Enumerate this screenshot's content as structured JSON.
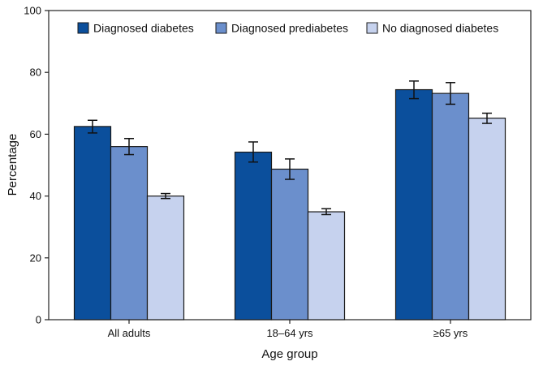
{
  "chart_data": {
    "type": "bar",
    "title": "",
    "xlabel": "Age group",
    "ylabel": "Percentage",
    "ylim": [
      0,
      100
    ],
    "yticks": [
      0,
      20,
      40,
      60,
      80,
      100
    ],
    "categories": [
      "All adults",
      "18–64 yrs",
      "≥65 yrs"
    ],
    "legend_position": "top",
    "series": [
      {
        "name": "Diagnosed diabetes",
        "color": "#0b4f9c",
        "values": [
          62.5,
          54.2,
          74.4
        ],
        "error_low": [
          60.4,
          51.0,
          71.5
        ],
        "error_high": [
          64.5,
          57.5,
          77.2
        ]
      },
      {
        "name": "Diagnosed prediabetes",
        "color": "#6b8fcc",
        "values": [
          56.0,
          48.7,
          73.2
        ],
        "error_low": [
          53.4,
          45.4,
          69.7
        ],
        "error_high": [
          58.6,
          52.0,
          76.7
        ]
      },
      {
        "name": "No diagnosed diabetes",
        "color": "#c6d2ee",
        "values": [
          40.0,
          34.9,
          65.2
        ],
        "error_low": [
          39.2,
          34.0,
          63.5
        ],
        "error_high": [
          40.8,
          35.9,
          66.8
        ]
      }
    ]
  }
}
